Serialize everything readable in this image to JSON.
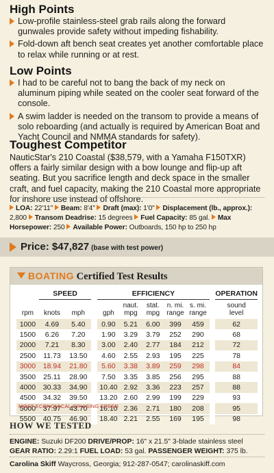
{
  "high_points": {
    "heading": "High Points",
    "items": [
      "Low-profile stainless-steel grab rails along the forward gunwales provide safety without impeding fishability.",
      "Fold-down aft bench seat creates yet another comfortable place to relax while running or at rest."
    ]
  },
  "low_points": {
    "heading": "Low Points",
    "items": [
      "I had to be careful not to bang the back of my neck on aluminum piping while seated on the cooler seat forward of the console.",
      "A swim ladder is needed on the transom to provide a means of solo reboarding (and actually is required by American Boat and Yacht Council and NMMA standards for safety)."
    ]
  },
  "competitor": {
    "heading": "Toughest Competitor",
    "text": "NauticStar's 210 Coastal ($38,579, with a Yamaha F150TXR) offers a fairly similar design with a bow lounge and flip-up aft seating. But you sacrifice length and deck space in the smaller craft, and fuel capacity, making the 210 Coastal more appropriate for inshore use instead of offshore."
  },
  "specs": {
    "loa_label": "LOA:",
    "loa": "22'11\"",
    "beam_label": "Beam:",
    "beam": "8'4\"",
    "draft_label": "Draft (max):",
    "draft": "1'0\"",
    "disp_label": "Displacement (lb., approx.):",
    "disp": "2,800",
    "deadrise_label": "Transom Deadrise:",
    "deadrise": "15 degrees",
    "fuel_label": "Fuel Capacity:",
    "fuel": "85 gal.",
    "maxhp_label": "Max Horsepower:",
    "maxhp": "250",
    "power_label": "Available Power:",
    "power": "Outboards, 150 hp to 250 hp"
  },
  "price": {
    "label": "Price: $47,827",
    "note": "(base with test power)"
  },
  "results": {
    "brand": "BOATING",
    "title_rest": " Certified Test Results",
    "group_speed": "SPEED",
    "group_efficiency": "EFFICIENCY",
    "group_operation": "OPERATION",
    "col_rpm": "rpm",
    "col_knots": "knots",
    "col_mph": "mph",
    "col_gph": "gph",
    "col_naut": [
      "naut.",
      "mpg"
    ],
    "col_stat": [
      "stat.",
      "mpg"
    ],
    "col_nmi": [
      "n. mi.",
      "range"
    ],
    "col_smi": [
      "s. mi.",
      "range"
    ],
    "col_sound": [
      "sound",
      "level"
    ],
    "rows": [
      [
        "1000",
        "4.69",
        "5.40",
        "0.90",
        "5.21",
        "6.00",
        "399",
        "459",
        "62"
      ],
      [
        "1500",
        "6.26",
        "7.20",
        "1.90",
        "3.29",
        "3.79",
        "252",
        "290",
        "68"
      ],
      [
        "2000",
        "7.21",
        "8.30",
        "3.00",
        "2.40",
        "2.77",
        "184",
        "212",
        "72"
      ],
      [
        "2500",
        "11.73",
        "13.50",
        "4.60",
        "2.55",
        "2.93",
        "195",
        "225",
        "78"
      ],
      [
        "3000",
        "18.94",
        "21.80",
        "5.60",
        "3.38",
        "3.89",
        "259",
        "298",
        "84"
      ],
      [
        "3500",
        "25.11",
        "28.90",
        "7.50",
        "3.35",
        "3.85",
        "256",
        "295",
        "88"
      ],
      [
        "4000",
        "30.33",
        "34.90",
        "10.40",
        "2.92",
        "3.36",
        "223",
        "257",
        "88"
      ],
      [
        "4500",
        "34.32",
        "39.50",
        "13.20",
        "2.60",
        "2.99",
        "199",
        "229",
        "93"
      ],
      [
        "5000",
        "37.97",
        "43.70",
        "16.10",
        "2.36",
        "2.71",
        "180",
        "208",
        "95"
      ],
      [
        "5500",
        "40.75",
        "46.90",
        "18.40",
        "2.21",
        "2.55",
        "169",
        "195",
        "98"
      ]
    ],
    "highlight_row": 4,
    "cruising_note": "MOST ECONOMICAL CRUISING SPEED"
  },
  "how_tested": {
    "heading": "HOW WE TESTED",
    "engine_label": "ENGINE:",
    "engine": "Suzuki DF200",
    "prop_label": "DRIVE/PROP:",
    "prop": "16\" x 21.5\" 3-blade stainless steel",
    "gear_label": "GEAR RATIO:",
    "gear": "2.29:1",
    "fuelload_label": "FUEL LOAD:",
    "fuelload": "53 gal.",
    "pass_label": "PASSENGER WEIGHT:",
    "pass": "375 lb."
  },
  "contact": {
    "name": "Carolina Skiff",
    "details": "Waycross, Georgia; 912-287-0547; carolinaskiff.com"
  },
  "colors": {
    "accent": "#e07a1f",
    "highlight": "#c0312b",
    "background": "#f5f0df",
    "band": "#d8d3c4"
  }
}
